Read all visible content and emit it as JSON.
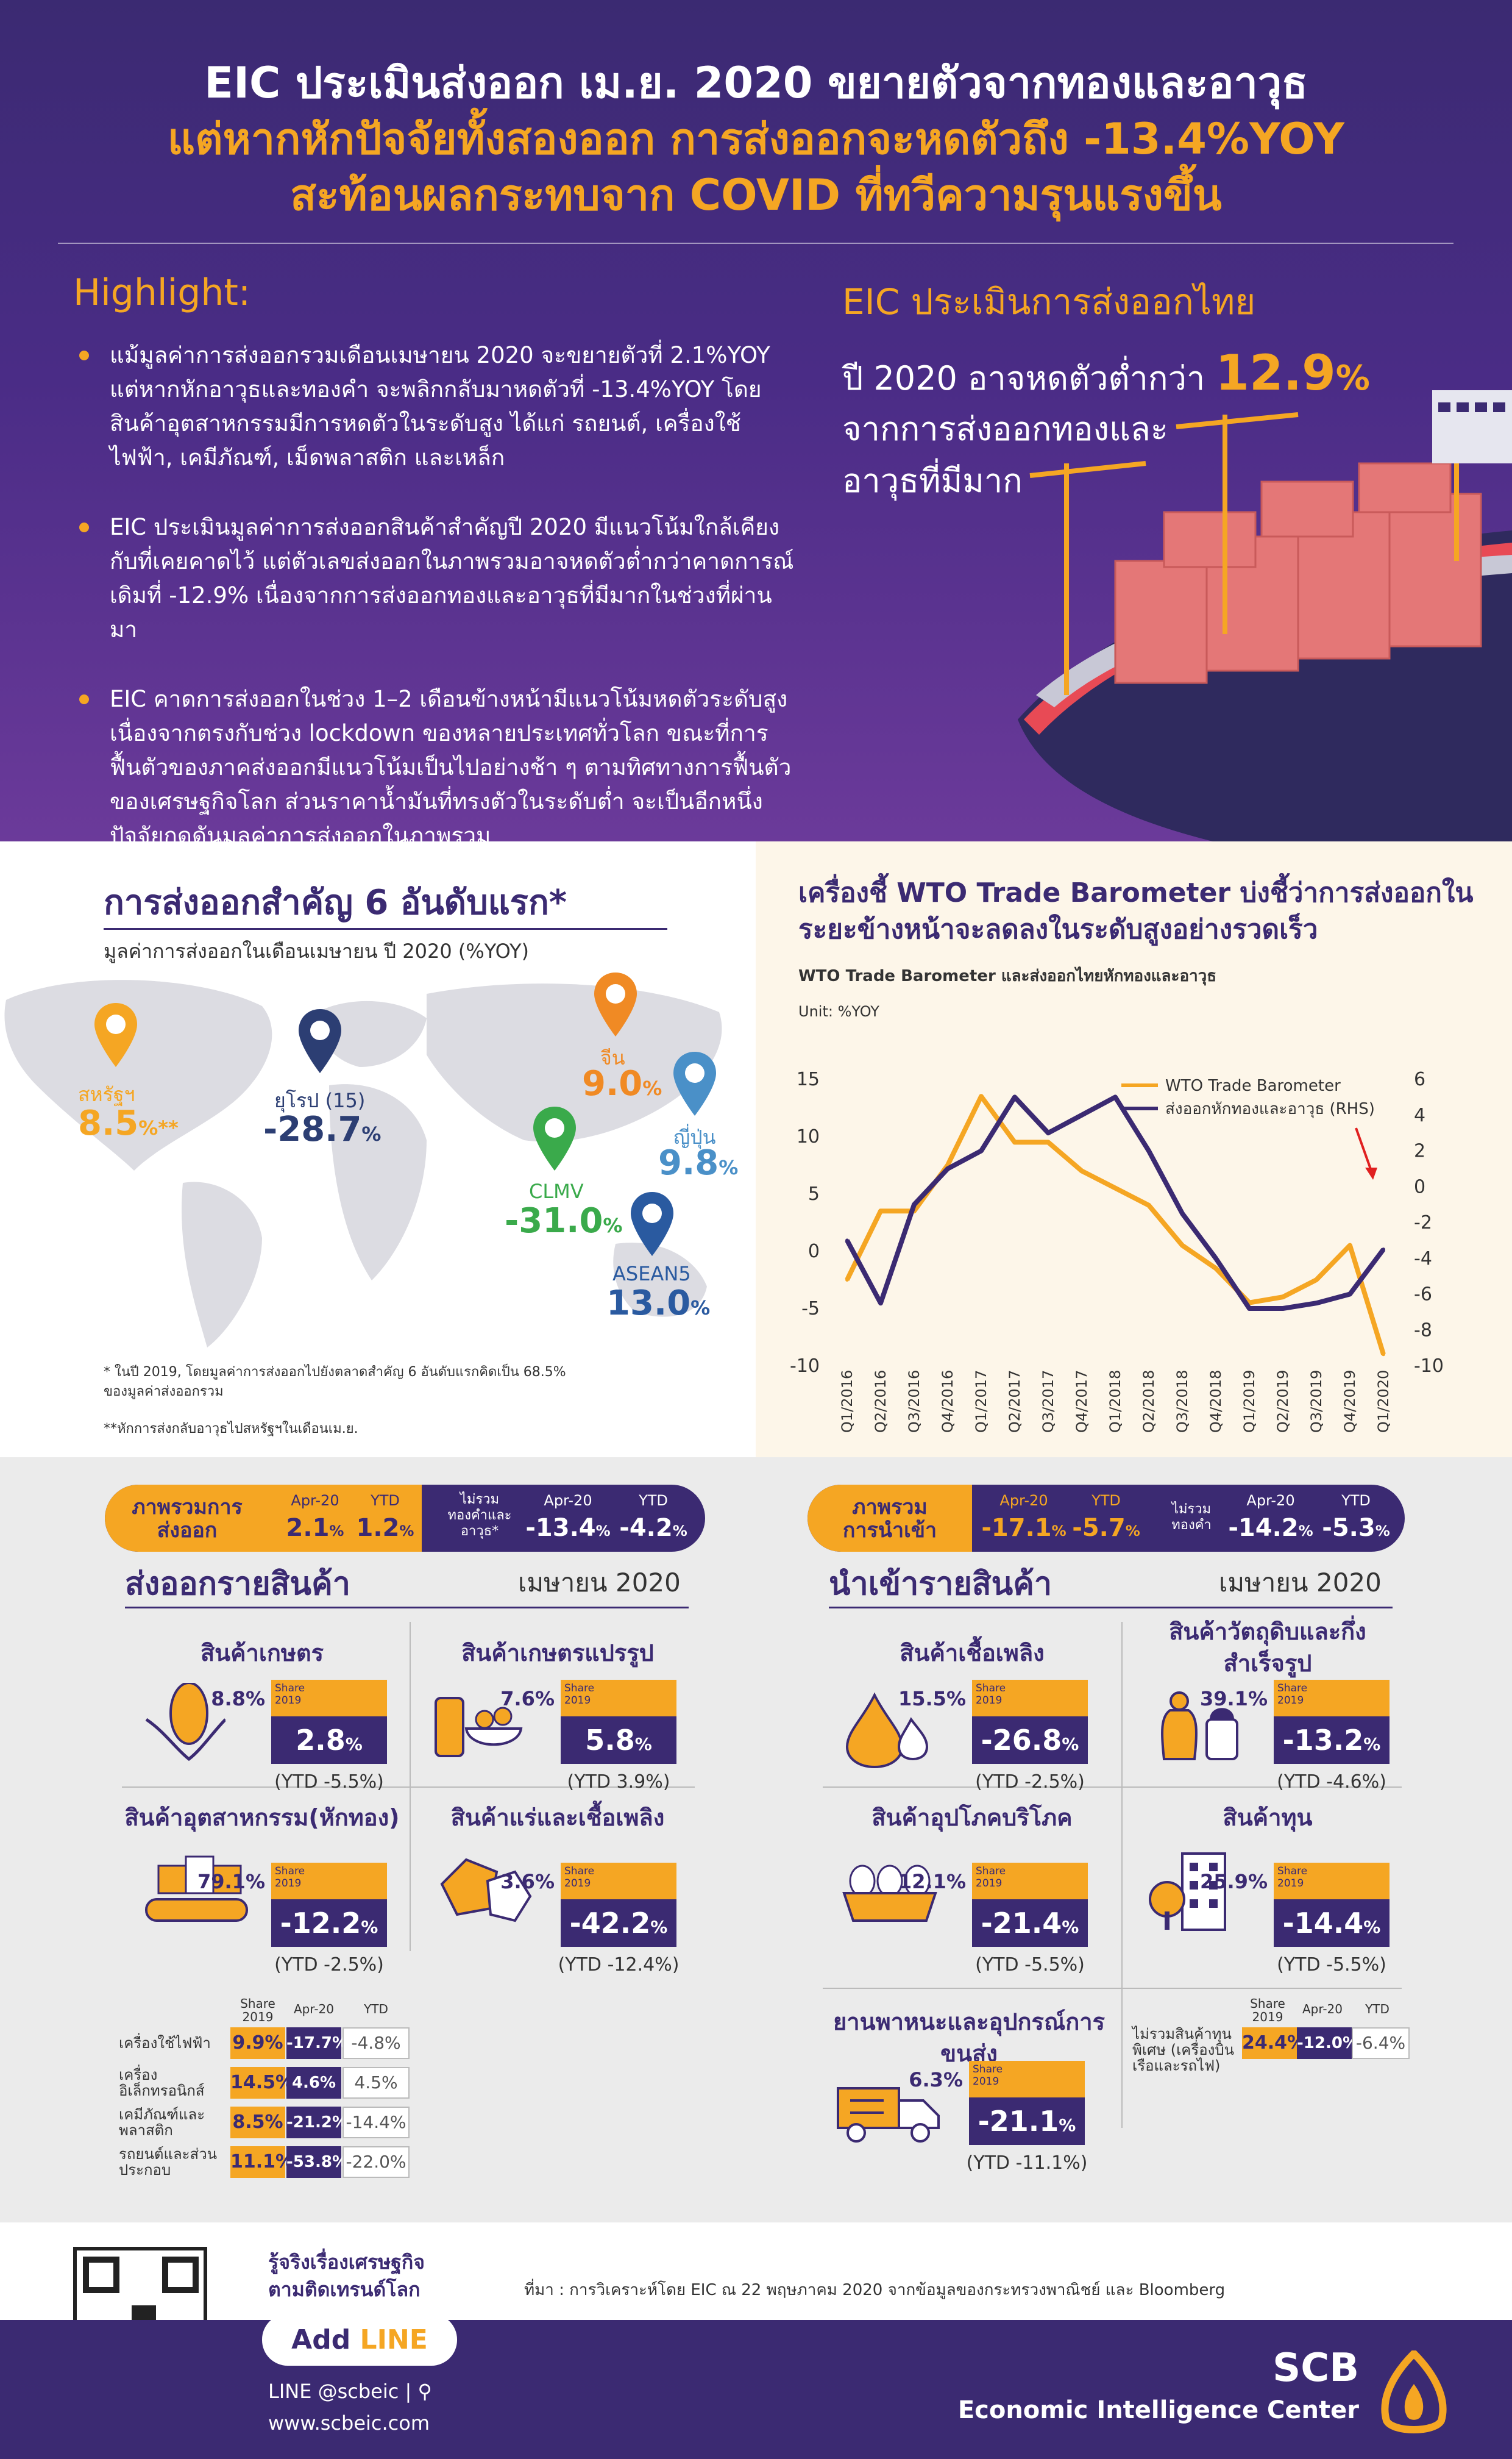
{
  "header": {
    "line1": "EIC ประเมินส่งออก เม.ย. 2020 ขยายตัวจากทองและอาวุธ",
    "line2": "แต่หากหักปัจจัยทั้งสองออก การส่งออกจะหดตัวถึง -13.4%YOY",
    "line3": "สะท้อนผลกระทบจาก COVID ที่ทวีความรุนแรงขึ้น"
  },
  "highlight": {
    "title": "Highlight:",
    "items": [
      "แม้มูลค่าการส่งออกรวมเดือนเมษายน 2020 จะขยายตัวที่ 2.1%YOY แต่หากหักอาวุธและทองคำ จะพลิกกลับมาหดตัวที่ -13.4%YOY โดยสินค้าอุตสาหกรรมมีการหดตัวในระดับสูง ได้แก่ รถยนต์, เครื่องใช้ไฟฟ้า, เคมีภัณฑ์, เม็ดพลาสติก และเหล็ก",
      "EIC ประเมินมูลค่าการส่งออกสินค้าสำคัญปี 2020 มีแนวโน้มใกล้เคียงกับที่เคยคาดไว้ แต่ตัวเลขส่งออกในภาพรวมอาจหดตัวต่ำกว่าคาดการณ์เดิมที่ -12.9% เนื่องจากการส่งออกทองและอาวุธที่มีมากในช่วงที่ผ่านมา",
      "EIC คาดการส่งออกในช่วง 1–2 เดือนข้างหน้ามีแนวโน้มหดตัวระดับสูงเนื่องจากตรงกับช่วง lockdown ของหลายประเทศทั่วโลก ขณะที่การฟื้นตัวของภาคส่งออกมีแนวโน้มเป็นไปอย่างช้า ๆ ตามทิศทางการฟื้นตัวของเศรษฐกิจโลก ส่วนราคาน้ำมันที่ทรงตัวในระดับต่ำ จะเป็นอีกหนึ่งปัจจัยกดดันมูลค่าการส่งออกในภาพรวม"
    ]
  },
  "eic_box": {
    "title": "EIC ประเมินการส่งออกไทย",
    "line1": "ปี 2020 อาจหดตัวต่ำกว่า",
    "value": "12.9",
    "unit": "%",
    "line2": "จากการส่งออกทองและ",
    "line3": "อาวุธที่มีมาก"
  },
  "top6": {
    "title": "การส่งออกสำคัญ 6 อันดับแรก*",
    "subtitle": "มูลค่าการส่งออกในเดือนเมษายน ปี 2020 (%YOY)",
    "markets": [
      {
        "name": "สหรัฐฯ",
        "value": "8.5",
        "unit": "%**",
        "color": "#f5a623"
      },
      {
        "name": "ยุโรป (15)",
        "value": "-28.7",
        "unit": "%",
        "color": "#2c3e73"
      },
      {
        "name": "จีน",
        "value": "9.0",
        "unit": "%",
        "color": "#f08a24"
      },
      {
        "name": "CLMV",
        "value": "-31.0",
        "unit": "%",
        "color": "#3aaa4b"
      },
      {
        "name": "ญี่ปุ่น",
        "value": "9.8",
        "unit": "%",
        "color": "#4a90c8"
      },
      {
        "name": "ASEAN5",
        "value": "13.0",
        "unit": "%",
        "color": "#2a5aa0"
      }
    ],
    "note1": "* ในปี 2019, โดยมูลค่าการส่งออกไปยังตลาดสำคัญ 6 อันดับแรกคิดเป็น 68.5% ของมูลค่าส่งออกรวม",
    "note2": "**หักการส่งกลับอาวุธไปสหรัฐฯในเดือนเม.ย."
  },
  "chart_data": {
    "type": "line",
    "title": "เครื่องชี้ WTO Trade Barometer บ่งชี้ว่าการส่งออกในระยะข้างหน้าจะลดลงในระดับสูงอย่างรวดเร็ว",
    "subtitle": "WTO Trade Barometer และส่งออกไทยหักทองและอาวุธ",
    "unit": "Unit: %YOY",
    "x": [
      "Q1/2016",
      "Q2/2016",
      "Q3/2016",
      "Q4/2016",
      "Q1/2017",
      "Q2/2017",
      "Q3/2017",
      "Q4/2017",
      "Q1/2018",
      "Q2/2018",
      "Q3/2018",
      "Q4/2018",
      "Q1/2019",
      "Q2/2019",
      "Q3/2019",
      "Q4/2019",
      "Q1/2020"
    ],
    "ylim_left": [
      -10,
      15
    ],
    "yticks_left": [
      "15",
      "10",
      "5",
      "0",
      "-5",
      "-10"
    ],
    "ylim_right": [
      -10,
      6
    ],
    "yticks_right": [
      "6",
      "4",
      "2",
      "0",
      "-2",
      "-4",
      "-6",
      "-8",
      "-10"
    ],
    "series": [
      {
        "name": "WTO Trade Barometer",
        "axis": "left",
        "color": "#f5a623",
        "values": [
          -2.5,
          3.5,
          3.5,
          7.5,
          13.5,
          9.5,
          9.5,
          7.0,
          5.5,
          4.0,
          0.5,
          -1.5,
          -4.5,
          -4.0,
          -2.5,
          0.5,
          -9.0
        ]
      },
      {
        "name": "ส่งออกหักทองและอาวุธ (RHS)",
        "axis": "right",
        "color": "#3b2a72",
        "values": [
          -3.0,
          -6.5,
          -1.0,
          1.0,
          2.0,
          5.0,
          3.0,
          4.0,
          5.0,
          2.0,
          -1.5,
          -4.0,
          -6.8,
          -6.8,
          -6.5,
          -6.0,
          -3.5
        ]
      }
    ]
  },
  "export_bar": {
    "label": "ภาพรวมการส่งออก",
    "h1": "Apr-20",
    "v1": "2.1",
    "u1": "%",
    "h2": "YTD",
    "v2": "1.2",
    "u2": "%",
    "label2": "ไม่รวมทองคำและอาวุธ*",
    "h3": "Apr-20",
    "v3": "-13.4",
    "u3": "%",
    "h4": "YTD",
    "v4": "-4.2",
    "u4": "%"
  },
  "import_bar": {
    "label": "ภาพรวมการนำเข้า",
    "h1": "Apr-20",
    "v1": "-17.1",
    "u1": "%",
    "h2": "YTD",
    "v2": "-5.7",
    "u2": "%",
    "label2": "ไม่รวมทองคำ",
    "h3": "Apr-20",
    "v3": "-14.2",
    "u3": "%",
    "h4": "YTD",
    "v4": "-5.3",
    "u4": "%"
  },
  "exports": {
    "title": "ส่งออกรายสินค้า",
    "month": "เมษายน 2020",
    "share_label": "Share 2019",
    "items": [
      {
        "name": "สินค้าเกษตร",
        "share": "8.8%",
        "value": "2.8",
        "unit": "%",
        "ytd": "(YTD -5.5%)"
      },
      {
        "name": "สินค้าเกษตรแปรรูป",
        "share": "7.6%",
        "value": "5.8",
        "unit": "%",
        "ytd": "(YTD 3.9%)"
      },
      {
        "name": "สินค้าอุตสาหกรรม(หักทอง)",
        "share": "79.1%",
        "value": "-12.2",
        "unit": "%",
        "ytd": "(YTD -2.5%)"
      },
      {
        "name": "สินค้าแร่และเชื้อเพลิง",
        "share": "3.6%",
        "value": "-42.2",
        "unit": "%",
        "ytd": "(YTD -12.4%)"
      }
    ],
    "grid_headers": {
      "share": "Share 2019",
      "apr": "Apr-20",
      "ytd": "YTD"
    },
    "sub_rows": [
      {
        "name": "เครื่องใช้ไฟฟ้า",
        "share": "9.9%",
        "apr": "-17.7%",
        "ytd": "-4.8%"
      },
      {
        "name": "เครื่องอิเล็กทรอนิกส์",
        "share": "14.5%",
        "apr": "4.6%",
        "ytd": "4.5%"
      },
      {
        "name": "เคมีภัณฑ์และพลาสติก",
        "share": "8.5%",
        "apr": "-21.2%",
        "ytd": "-14.4%"
      },
      {
        "name": "รถยนต์และส่วนประกอบ",
        "share": "11.1%",
        "apr": "-53.8%",
        "ytd": "-22.0%"
      }
    ]
  },
  "imports": {
    "title": "นำเข้ารายสินค้า",
    "month": "เมษายน 2020",
    "share_label": "Share 2019",
    "items": [
      {
        "name": "สินค้าเชื้อเพลิง",
        "share": "15.5%",
        "value": "-26.8",
        "unit": "%",
        "ytd": "(YTD -2.5%)"
      },
      {
        "name": "สินค้าวัตถุดิบและกึ่งสำเร็จรูป",
        "share": "39.1%",
        "value": "-13.2",
        "unit": "%",
        "ytd": "(YTD -4.6%)"
      },
      {
        "name": "สินค้าอุปโภคบริโภค",
        "share": "12.1%",
        "value": "-21.4",
        "unit": "%",
        "ytd": "(YTD -5.5%)"
      },
      {
        "name": "สินค้าทุน",
        "share": "25.9%",
        "value": "-14.4",
        "unit": "%",
        "ytd": "(YTD -5.5%)"
      },
      {
        "name": "ยานพาหนะและอุปกรณ์การขนส่ง",
        "share": "6.3%",
        "value": "-21.1",
        "unit": "%",
        "ytd": "(YTD -11.1%)"
      }
    ],
    "grid_headers": {
      "share": "Share 2019",
      "apr": "Apr-20",
      "ytd": "YTD"
    },
    "sub_row": {
      "name": "ไม่รวมสินค้าทุนพิเศษ (เครื่องบิน เรือและรถไฟ)",
      "share": "24.4%",
      "apr": "-12.0%",
      "ytd": "-6.4%"
    }
  },
  "footer": {
    "tagline1": "รู้จริงเรื่องเศรษฐกิจ",
    "tagline2": "ตามติดเทรนด์โลก",
    "add": "Add ",
    "line": "LINE",
    "line_id": "LINE @scbeic |",
    "web": "www.scbeic.com",
    "source": "ที่มา : การวิเคราะห์โดย EIC ณ 22 พฤษภาคม 2020 จากข้อมูลของกระทรวงพาณิชย์ และ Bloomberg",
    "brand1": "SCB",
    "brand2": "Economic Intelligence Center"
  },
  "colors": {
    "purple": "#3b2a72",
    "orange": "#f5a623",
    "white": "#ffffff"
  }
}
